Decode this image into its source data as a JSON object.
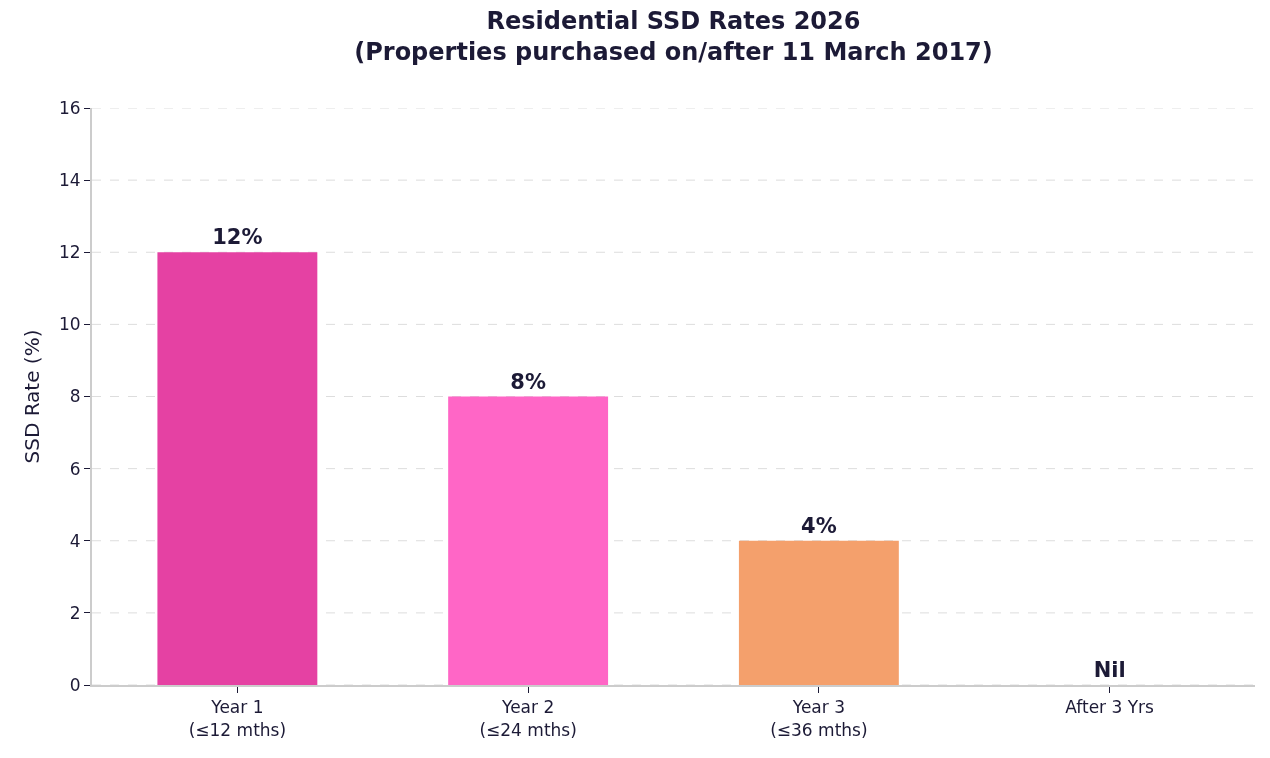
{
  "chart_data": {
    "type": "bar",
    "title": "Residential SSD Rates 2026\n(Properties purchased on/after 11 March 2017)",
    "ylabel": "SSD Rate (%)",
    "categories": [
      "Year 1\n(≤12 mths)",
      "Year 2\n(≤24 mths)",
      "Year 3\n(≤36 mths)",
      "After 3 Yrs"
    ],
    "values": [
      12,
      8,
      4,
      0
    ],
    "colors": [
      "#e541a3",
      "#ff66c6",
      "#f4a06c",
      null
    ],
    "value_labels": [
      "12%",
      "8%",
      "4%",
      "Nil"
    ],
    "ylim": [
      0,
      16
    ],
    "yticks": [
      0,
      2,
      4,
      6,
      8,
      10,
      12,
      14,
      16
    ],
    "grid": "y"
  }
}
